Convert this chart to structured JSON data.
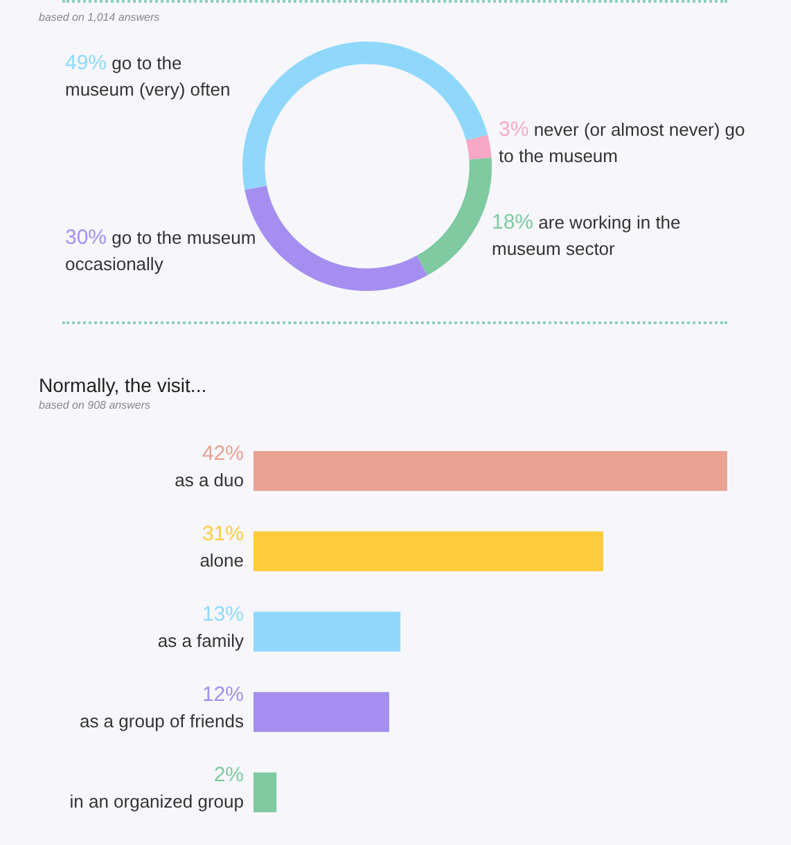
{
  "chart_data": [
    {
      "type": "donut",
      "subtitle": "based on 1,014 answers",
      "categories": [
        "go to the museum (very) often",
        "never (or almost never) go to the museum",
        "are working in the museum sector",
        "go to the museum occasionally"
      ],
      "values": [
        49,
        3,
        18,
        30
      ],
      "value_labels": [
        "49%",
        "3%",
        "18%",
        "30%"
      ],
      "colors": [
        "#8fd8fb",
        "#f7a8c4",
        "#7fcaa0",
        "#a48ff0"
      ]
    },
    {
      "type": "bar",
      "orientation": "horizontal",
      "title": "Normally, the visit...",
      "subtitle": "based on 908 answers",
      "categories": [
        "as a duo",
        "alone",
        "as a family",
        "as a group of friends",
        "in an organized group"
      ],
      "values": [
        42,
        31,
        13,
        12,
        2
      ],
      "value_labels": [
        "42%",
        "31%",
        "13%",
        "12%",
        "2%"
      ],
      "colors": [
        "#e9a191",
        "#fecb3d",
        "#8fd8fb",
        "#a48ff0",
        "#7fcaa0"
      ]
    }
  ]
}
